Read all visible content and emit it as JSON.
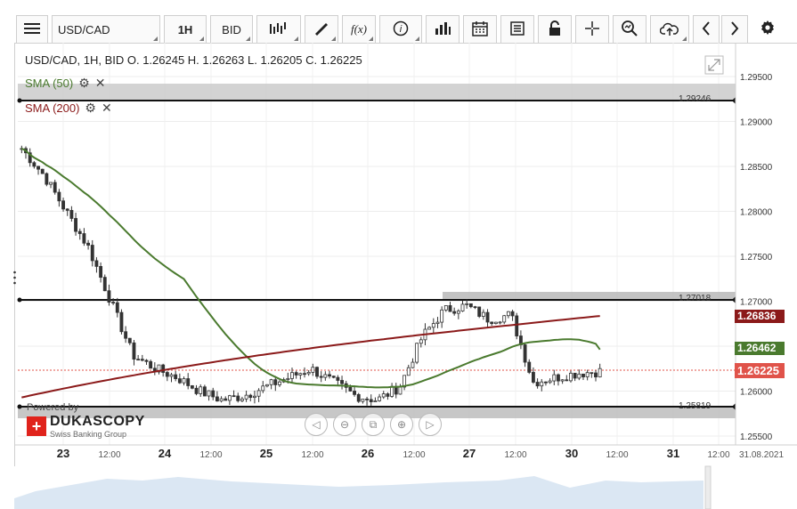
{
  "toolbar": {
    "symbol": "USD/CAD",
    "timeframe": "1H",
    "price_side": "BID",
    "icons": [
      "menu-icon",
      "bar-chart-type-icon",
      "draw-pen-icon",
      "function-icon",
      "info-icon",
      "volume-icon",
      "calendar-icon",
      "news-icon",
      "lock-icon",
      "crosshair-icon",
      "zoom-icon",
      "upload-icon",
      "chevron-left-icon",
      "chevron-right-icon",
      "gear-icon"
    ],
    "function_glyph": "f(x)"
  },
  "chart": {
    "ohlc": "USD/CAD, 1H, BID    O. 1.26245  H. 1.26263  L. 1.26205  C. 1.26225",
    "indicators": [
      {
        "label": "SMA (50)",
        "color": "#4a7a2e"
      },
      {
        "label": "SMA (200)",
        "color": "#8b1a1a"
      }
    ],
    "powered_by": "Powered by",
    "brand": "DUKASCOPY",
    "brand_tagline": "Swiss Banking Group",
    "last_price": "1.26225",
    "sma200_price": "1.26836",
    "sma50_price": "1.26462",
    "lines": [
      {
        "label": "1.29246"
      },
      {
        "label": "1.27018"
      },
      {
        "label": "1.25819"
      }
    ],
    "y_ticks": [
      "1.29500",
      "1.29000",
      "1.28500",
      "1.28000",
      "1.27500",
      "1.27000",
      "1.26500",
      "1.26000",
      "1.25500"
    ],
    "x_ticks": [
      "23",
      "12:00",
      "24",
      "12:00",
      "25",
      "12:00",
      "26",
      "12:00",
      "27",
      "12:00",
      "30",
      "12:00",
      "31",
      "12:00",
      "31.08.2021"
    ],
    "colors": {
      "up": "#3a7d2a",
      "down": "#a32a2a",
      "sma50": "#4a7a2e",
      "sma200": "#8b1a1a",
      "last": "#e0534a"
    }
  },
  "chart_data": {
    "type": "candlestick",
    "title": "USD/CAD, 1H, BID",
    "ylim": [
      1.2545,
      1.296
    ],
    "x_axis_labels": [
      "23",
      "24",
      "25",
      "26",
      "27",
      "30",
      "31"
    ],
    "close_approx": [
      1.287,
      1.284,
      1.28,
      1.276,
      1.27,
      1.264,
      1.2625,
      1.2615,
      1.26,
      1.259,
      1.2595,
      1.2605,
      1.2615,
      1.2625,
      1.261,
      1.2595,
      1.259,
      1.2605,
      1.266,
      1.269,
      1.2695,
      1.268,
      1.2685,
      1.261,
      1.2615,
      1.262,
      1.2622
    ],
    "sma50_last": 1.26462,
    "sma200_last": 1.26836,
    "horizontal_levels": [
      1.29246,
      1.27018,
      1.25819
    ]
  }
}
